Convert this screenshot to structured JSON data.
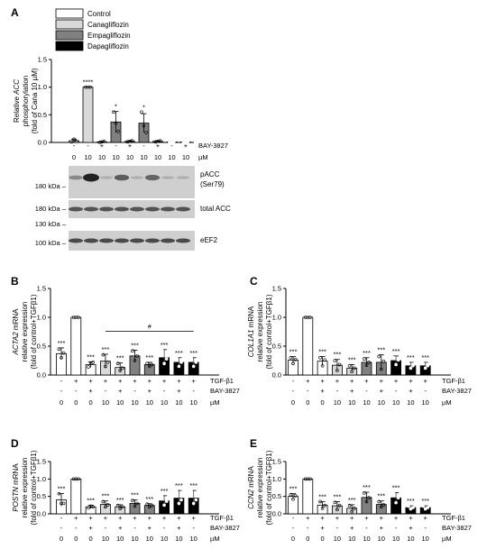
{
  "colors": {
    "control": "#ffffff",
    "cana": "#d9d9d9",
    "empa": "#808080",
    "dapa": "#000000",
    "blot_bg": "#cfcfcf",
    "band": "#333333"
  },
  "panel_letters": [
    "A",
    "B",
    "C",
    "D",
    "E"
  ],
  "legend": [
    "Control",
    "Canagliflozin",
    "Empagliflozin",
    "Dapagliflozin"
  ],
  "condition_rows": {
    "A": {
      "bay": [
        "-",
        "-",
        "+",
        "-",
        "+",
        "-",
        "+",
        "-",
        "+"
      ],
      "uM": [
        "0",
        "10",
        "10",
        "10",
        "10",
        "10",
        "10",
        "10",
        "10"
      ],
      "bay_label": "BAY-3827",
      "uM_label": "µM"
    },
    "small": {
      "tgf": [
        "-",
        "+",
        "+",
        "+",
        "+",
        "+",
        "+",
        "+",
        "+",
        "+"
      ],
      "bay": [
        "-",
        "-",
        "+",
        "-",
        "+",
        "-",
        "+",
        "-",
        "+",
        "-"
      ],
      "uM": [
        "0",
        "0",
        "0",
        "10",
        "10",
        "10",
        "10",
        "10",
        "10",
        "10"
      ],
      "tgf_label": "TGF-β1",
      "bay_label": "BAY-3827",
      "uM_label": "µM"
    }
  },
  "blot": {
    "labels": [
      "pACC",
      "(Ser79)",
      "total ACC",
      "eEF2"
    ],
    "kda": [
      "180 kDa –",
      "180 kDa –",
      "130 kDa –",
      "100 kDa –"
    ]
  },
  "chart_data": [
    {
      "panel": "A",
      "type": "bar",
      "ylabel_lines": [
        "Relative ACC",
        "phosphorylation",
        "(fold of Cana 10 µM)"
      ],
      "yticks": [
        "0.0",
        "0.5",
        "1.0",
        "1.5"
      ],
      "ylim": [
        0,
        1.5
      ],
      "groups": [
        "control",
        "cana",
        "cana",
        "empa",
        "empa",
        "empa",
        "empa",
        "dapa",
        "dapa"
      ],
      "values": [
        0.03,
        1.0,
        0.01,
        0.37,
        0.02,
        0.35,
        0.02,
        0.01,
        0.01
      ],
      "errors": [
        0.03,
        0.0,
        0.01,
        0.19,
        0.01,
        0.17,
        0.01,
        0.01,
        0.01
      ],
      "points": [
        [
          0.01,
          0.06,
          0.02
        ],
        [
          1.0,
          1.0,
          1.0
        ],
        [
          0.0,
          0.01,
          0.02
        ],
        [
          0.55,
          0.35,
          0.2
        ],
        [
          0.01,
          0.02,
          0.03
        ],
        [
          0.55,
          0.3,
          0.18
        ],
        [
          0.01,
          0.02,
          0.03
        ],
        [
          0.0,
          0.01,
          0.02
        ],
        [
          0.0,
          0.01,
          0.02
        ]
      ],
      "sig": [
        "",
        "****",
        "",
        "*",
        "",
        "*",
        "",
        "",
        ""
      ]
    },
    {
      "panel": "B",
      "type": "bar",
      "ylabel_lines": [
        "ACTA2 mRNA",
        "relative expression",
        "(fold of control+TGFβ1)"
      ],
      "yticks": [
        "0.0",
        "0.5",
        "1.0",
        "1.5"
      ],
      "ylim": [
        0,
        1.5
      ],
      "groups": [
        "control",
        "control",
        "control",
        "cana",
        "cana",
        "empa",
        "empa",
        "dapa",
        "dapa",
        "dapa"
      ],
      "values": [
        0.37,
        1.0,
        0.18,
        0.24,
        0.13,
        0.33,
        0.18,
        0.3,
        0.22,
        0.22
      ],
      "errors": [
        0.1,
        0.0,
        0.05,
        0.12,
        0.08,
        0.1,
        0.04,
        0.14,
        0.08,
        0.08
      ],
      "points": [
        [
          0.45,
          0.3,
          0.38
        ],
        [
          1.0,
          1.0,
          1.0
        ],
        [
          0.14,
          0.2,
          0.22
        ],
        [
          0.35,
          0.15,
          0.22
        ],
        [
          0.2,
          0.08,
          0.12
        ],
        [
          0.42,
          0.25,
          0.33
        ],
        [
          0.2,
          0.15,
          0.18
        ],
        [
          0.43,
          0.2,
          0.28
        ],
        [
          0.3,
          0.15,
          0.22
        ],
        [
          0.3,
          0.15,
          0.22
        ]
      ],
      "sig": [
        "***",
        "",
        "***",
        "***",
        "***",
        "***",
        "***",
        "***",
        "***",
        "***"
      ],
      "bracket": "#"
    },
    {
      "panel": "C",
      "type": "bar",
      "ylabel_lines": [
        "COL1A1 mRNA",
        "relative expression",
        "(fold of control+TGFβ1)"
      ],
      "yticks": [
        "0.0",
        "0.5",
        "1.0",
        "1.5"
      ],
      "ylim": [
        0,
        1.5
      ],
      "groups": [
        "control",
        "control",
        "control",
        "cana",
        "cana",
        "empa",
        "empa",
        "dapa",
        "dapa",
        "dapa"
      ],
      "values": [
        0.26,
        1.0,
        0.24,
        0.17,
        0.12,
        0.22,
        0.22,
        0.25,
        0.16,
        0.16
      ],
      "errors": [
        0.06,
        0.0,
        0.08,
        0.1,
        0.06,
        0.08,
        0.13,
        0.08,
        0.06,
        0.06
      ],
      "points": [
        [
          0.3,
          0.2,
          0.27
        ],
        [
          1.0,
          1.0,
          1.0
        ],
        [
          0.3,
          0.16,
          0.26
        ],
        [
          0.25,
          0.08,
          0.18
        ],
        [
          0.16,
          0.06,
          0.12
        ],
        [
          0.28,
          0.17,
          0.22
        ],
        [
          0.32,
          0.1,
          0.24
        ],
        [
          0.3,
          0.18,
          0.26
        ],
        [
          0.2,
          0.12,
          0.16
        ],
        [
          0.2,
          0.12,
          0.16
        ]
      ],
      "sig": [
        "***",
        "",
        "***",
        "***",
        "***",
        "***",
        "***",
        "***",
        "***",
        "***"
      ]
    },
    {
      "panel": "D",
      "type": "bar",
      "ylabel_lines": [
        "POSTN mRNA",
        "relative expression",
        "(fold of control+TGFβ1)"
      ],
      "yticks": [
        "0.0",
        "0.5",
        "1.0",
        "1.5"
      ],
      "ylim": [
        0,
        1.5
      ],
      "groups": [
        "control",
        "control",
        "control",
        "cana",
        "cana",
        "empa",
        "empa",
        "dapa",
        "dapa",
        "dapa"
      ],
      "values": [
        0.4,
        1.0,
        0.2,
        0.27,
        0.2,
        0.3,
        0.24,
        0.37,
        0.45,
        0.45
      ],
      "errors": [
        0.18,
        0.0,
        0.05,
        0.1,
        0.06,
        0.1,
        0.05,
        0.15,
        0.22,
        0.22
      ],
      "points": [
        [
          0.58,
          0.3,
          0.3
        ],
        [
          1.0,
          1.0,
          1.0
        ],
        [
          0.17,
          0.22,
          0.2
        ],
        [
          0.35,
          0.2,
          0.26
        ],
        [
          0.24,
          0.15,
          0.2
        ],
        [
          0.38,
          0.22,
          0.3
        ],
        [
          0.28,
          0.2,
          0.24
        ],
        [
          0.5,
          0.25,
          0.36
        ],
        [
          0.65,
          0.3,
          0.4
        ],
        [
          0.65,
          0.3,
          0.4
        ]
      ],
      "sig": [
        "***",
        "",
        "***",
        "***",
        "***",
        "***",
        "***",
        "***",
        "***",
        "***"
      ]
    },
    {
      "panel": "E",
      "type": "bar",
      "ylabel_lines": [
        "CCN2 mRNA",
        "relative expression",
        "(fold of control+TGFβ1)"
      ],
      "yticks": [
        "0.0",
        "0.5",
        "1.0",
        "1.5"
      ],
      "ylim": [
        0,
        1.5
      ],
      "groups": [
        "control",
        "control",
        "control",
        "cana",
        "cana",
        "empa",
        "empa",
        "dapa",
        "dapa",
        "dapa"
      ],
      "values": [
        0.5,
        1.0,
        0.25,
        0.23,
        0.16,
        0.47,
        0.27,
        0.46,
        0.18,
        0.18
      ],
      "errors": [
        0.08,
        0.0,
        0.1,
        0.12,
        0.1,
        0.15,
        0.1,
        0.15,
        0.05,
        0.05
      ],
      "points": [
        [
          0.55,
          0.42,
          0.52
        ],
        [
          1.0,
          1.0,
          1.0
        ],
        [
          0.35,
          0.16,
          0.24
        ],
        [
          0.33,
          0.12,
          0.24
        ],
        [
          0.24,
          0.06,
          0.16
        ],
        [
          0.6,
          0.35,
          0.46
        ],
        [
          0.35,
          0.2,
          0.26
        ],
        [
          0.6,
          0.32,
          0.46
        ],
        [
          0.22,
          0.14,
          0.18
        ],
        [
          0.22,
          0.14,
          0.18
        ]
      ],
      "sig": [
        "***",
        "",
        "***",
        "***",
        "***",
        "***",
        "***",
        "***",
        "***",
        "***"
      ]
    }
  ]
}
